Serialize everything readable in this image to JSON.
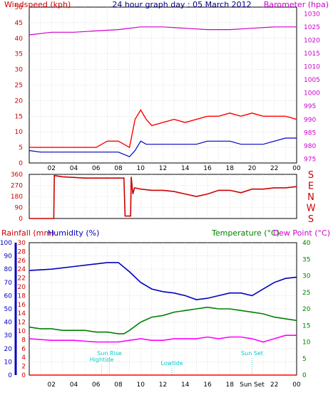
{
  "chart_data": [
    {
      "type": "line",
      "title": "24 hour graph day : 05 March 2012",
      "left_axis_label": "Windspeed (kph)",
      "right_axis_label": "Barometer (hpa)",
      "left_ticks": [
        "0",
        "5",
        "10",
        "15",
        "20",
        "25",
        "30",
        "35",
        "40",
        "45",
        "50"
      ],
      "right_ticks": [
        "975",
        "980",
        "985",
        "990",
        "995",
        "1000",
        "1005",
        "1010",
        "1015",
        "1020",
        "1025",
        "1030"
      ],
      "xtick_labels": [
        "02",
        "04",
        "06",
        "08",
        "10",
        "12",
        "14",
        "16",
        "18",
        "20",
        "22",
        "00"
      ],
      "xlim": [
        0,
        24
      ],
      "ylim": [
        0,
        50
      ],
      "y2lim": [
        973.5,
        1032.5
      ],
      "grid": true,
      "colors": {
        "gust": "#ff0000",
        "average": "#0000c0",
        "barometer": "#cc00cc",
        "left_label": "#cc0000",
        "right_label": "#cc00cc",
        "title": "#000080"
      },
      "series": [
        {
          "name": "Windspeed (kph)",
          "x": [
            0,
            1,
            2,
            3,
            4,
            5,
            6,
            7,
            8,
            9,
            9.5,
            10,
            10.5,
            11,
            12,
            13,
            14,
            15,
            16,
            17,
            18,
            19,
            20,
            21,
            22,
            23,
            24
          ],
          "values": [
            5,
            5,
            5,
            5,
            5,
            5,
            5,
            7,
            7,
            5,
            14,
            17,
            14,
            12,
            13,
            14,
            13,
            14,
            15,
            15,
            16,
            15,
            16,
            15,
            15,
            15,
            14
          ]
        },
        {
          "name": "Windspeed average",
          "x": [
            0,
            1,
            2,
            3,
            4,
            5,
            6,
            7,
            8,
            9,
            9.5,
            10,
            10.5,
            11,
            12,
            13,
            14,
            15,
            16,
            17,
            18,
            19,
            20,
            21,
            22,
            23,
            24
          ],
          "values": [
            4,
            3.5,
            3.5,
            3.5,
            3.5,
            3.5,
            3.5,
            3.5,
            3.5,
            2,
            4,
            7,
            6,
            6,
            6,
            6,
            6,
            6,
            7,
            7,
            7,
            6,
            6,
            6,
            7,
            8,
            8
          ]
        },
        {
          "name": "Barometer (hpa)",
          "x": [
            0,
            2,
            4,
            6,
            8,
            10,
            12,
            14,
            16,
            18,
            20,
            22,
            24
          ],
          "values": [
            1022,
            1023,
            1023,
            1023.5,
            1024,
            1025,
            1025,
            1024.5,
            1024,
            1024,
            1024.5,
            1025,
            1025
          ]
        }
      ]
    },
    {
      "type": "line",
      "left_ticks": [
        "0",
        "90",
        "180",
        "270",
        "360"
      ],
      "compass_labels": [
        "S",
        "E",
        "N",
        "W",
        "S"
      ],
      "xlim": [
        0,
        24
      ],
      "ylim": [
        0,
        360
      ],
      "grid": true,
      "colors": {
        "direction": "#cc0000",
        "compass": "#cc0000"
      },
      "series": [
        {
          "name": "Wind direction",
          "x": [
            0,
            2.2,
            2.25,
            3,
            5,
            7,
            8.5,
            8.6,
            9.1,
            9.15,
            9.3,
            9.45,
            10,
            11,
            12,
            13,
            14,
            15,
            16,
            17,
            18,
            19,
            20,
            21,
            22,
            23,
            24
          ],
          "values": [
            0,
            0,
            350,
            340,
            330,
            330,
            330,
            20,
            20,
            340,
            200,
            250,
            240,
            230,
            230,
            220,
            200,
            180,
            200,
            230,
            230,
            210,
            240,
            240,
            250,
            250,
            260
          ]
        }
      ]
    },
    {
      "type": "line",
      "rainfall_label": "Rainfall (mm)",
      "humidity_label": "Humidity (%)",
      "temperature_label": "Temperature (°C)",
      "dewpoint_label": "Dew Point (°C)",
      "humidity_ticks": [
        "0",
        "10",
        "20",
        "30",
        "40",
        "50",
        "60",
        "70",
        "80",
        "90",
        "100"
      ],
      "rainfall_ticks": [
        "0",
        "2",
        "4",
        "6",
        "8",
        "10",
        "12",
        "14",
        "16",
        "18",
        "20",
        "22",
        "24",
        "26",
        "28",
        "30"
      ],
      "temperature_ticks": [
        "0",
        "5",
        "10",
        "15",
        "20",
        "25",
        "30",
        "35",
        "40"
      ],
      "xtick_labels": [
        "02",
        "04",
        "06",
        "08",
        "10",
        "12",
        "14",
        "16",
        "18",
        "Sun Set",
        "22",
        "00"
      ],
      "xlim": [
        0,
        24
      ],
      "ylim": [
        0,
        100
      ],
      "y2lim": [
        0,
        40
      ],
      "grid": true,
      "annotations": [
        {
          "text": "Sun Rise",
          "x": 7.2
        },
        {
          "text": "Hightide",
          "x": 6.5
        },
        {
          "text": "Lowtide",
          "x": 12.8
        },
        {
          "text": "Sun Set",
          "x": 20
        }
      ],
      "colors": {
        "humidity": "#0000c0",
        "temperature": "#008000",
        "dewpoint": "#ff00ff",
        "rainfall": "#ff0000",
        "annotation": "#00cccc",
        "rainfall_label": "#cc0000",
        "humidity_label": "#0000c0",
        "temperature_label": "#008000",
        "dewpoint_label": "#cc00cc"
      },
      "series": [
        {
          "name": "Humidity (%)",
          "x": [
            0,
            2,
            4,
            6,
            7,
            8,
            9,
            10,
            11,
            12,
            13,
            14,
            15,
            16,
            17,
            18,
            19,
            20,
            21,
            22,
            23,
            24
          ],
          "values": [
            79,
            80,
            82,
            84,
            85,
            85,
            78,
            70,
            65,
            63,
            62,
            60,
            57,
            58,
            60,
            62,
            62,
            60,
            65,
            70,
            73,
            74
          ],
          "axis": "left"
        },
        {
          "name": "Temperature (°C)",
          "x": [
            0,
            1,
            2,
            3,
            4,
            5,
            6,
            7,
            8,
            8.5,
            9,
            10,
            11,
            12,
            13,
            14,
            15,
            16,
            17,
            18,
            19,
            20,
            21,
            22,
            23,
            24
          ],
          "values": [
            14.5,
            14,
            14,
            13.5,
            13.5,
            13.5,
            13,
            13,
            12.5,
            12.5,
            13.5,
            16,
            17.5,
            18,
            19,
            19.5,
            20,
            20.5,
            20,
            20,
            19.5,
            19,
            18.5,
            17.5,
            17,
            16.5
          ],
          "axis": "right"
        },
        {
          "name": "Dew Point (°C)",
          "x": [
            0,
            2,
            4,
            6,
            8,
            9,
            10,
            11,
            12,
            13,
            14,
            15,
            16,
            17,
            18,
            19,
            20,
            21,
            22,
            23,
            24
          ],
          "values": [
            11,
            10.5,
            10.5,
            10,
            10,
            10.5,
            11,
            10.5,
            10.5,
            11,
            11,
            11,
            11.5,
            11,
            11.5,
            11.5,
            11,
            10,
            11,
            12,
            12
          ],
          "axis": "right"
        },
        {
          "name": "Rainfall (mm)",
          "x": [
            0,
            24
          ],
          "values": [
            0,
            0
          ],
          "axis": "rain"
        }
      ]
    }
  ]
}
